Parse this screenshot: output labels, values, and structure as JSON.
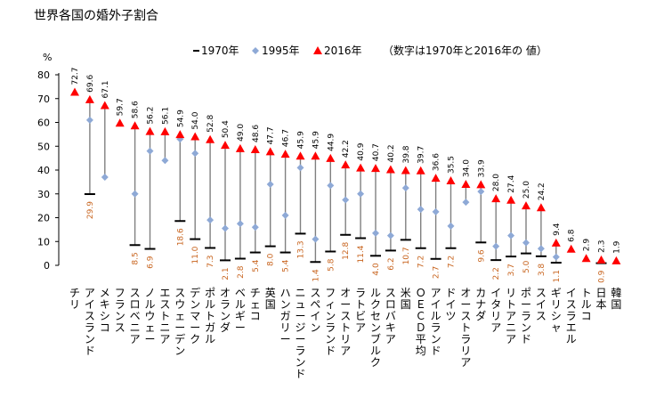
{
  "chart_data": {
    "type": "scatter",
    "title": "世界各国の婚外子割合",
    "ylabel": "%",
    "ylim": [
      0,
      80
    ],
    "yticks": [
      0,
      10,
      20,
      30,
      40,
      50,
      60,
      70,
      80
    ],
    "legend": {
      "placement": "top",
      "note": "（数字は1970年と2016年の 値）"
    },
    "series": [
      {
        "name": "1970年",
        "marker": "dash",
        "color": "#000000",
        "values": [
          null,
          29.9,
          null,
          null,
          8.5,
          6.9,
          null,
          18.6,
          11.0,
          7.3,
          2.1,
          2.8,
          5.4,
          8.0,
          5.4,
          13.3,
          1.4,
          5.8,
          12.8,
          11.4,
          4.0,
          6.2,
          10.7,
          7.2,
          2.7,
          7.2,
          null,
          9.6,
          2.2,
          3.7,
          5.0,
          3.8,
          1.1,
          null,
          null,
          0.9,
          null
        ]
      },
      {
        "name": "1995年",
        "marker": "diamond",
        "color": "#8ea9d6",
        "values": [
          null,
          61,
          37,
          null,
          30,
          48,
          44,
          53,
          47,
          19,
          15.5,
          17.5,
          16,
          34,
          21,
          41,
          11,
          33.5,
          27.5,
          30,
          13.5,
          12.5,
          32.5,
          23.5,
          22.5,
          16.5,
          26.5,
          31,
          8,
          12.5,
          9.5,
          7,
          3.5,
          null,
          null,
          null,
          null
        ]
      },
      {
        "name": "2016年",
        "marker": "triangle",
        "color": "#ff0000",
        "values": [
          72.7,
          69.6,
          67.1,
          59.7,
          58.6,
          56.2,
          56.1,
          54.9,
          54.0,
          52.8,
          50.4,
          49.0,
          48.6,
          47.7,
          46.7,
          45.9,
          45.9,
          44.9,
          42.2,
          40.9,
          40.7,
          40.2,
          39.8,
          39.7,
          36.6,
          35.5,
          34.0,
          33.9,
          28.0,
          27.4,
          25.0,
          24.2,
          9.4,
          6.8,
          2.9,
          2.3,
          1.9
        ]
      }
    ],
    "categories": [
      "チリ",
      "アイスランド",
      "メキシコ",
      "フランス",
      "スロベニア",
      "ノルウェー",
      "エストニア",
      "スウェーデン",
      "デンマーク",
      "ポルトガル",
      "オランダ",
      "ベルギー",
      "チェコ",
      "英国",
      "ハンガリー",
      "ニュージーランド",
      "スペイン",
      "フィンランド",
      "オーストリア",
      "ラトビア",
      "ルクセンブルク",
      "スロバキア",
      "米国",
      "ＯＥＣＤ平均",
      "アイルランド",
      "ドイツ",
      "オーストラリア",
      "カナダ",
      "イタリア",
      "リトアニア",
      "ポーランド",
      "スイス",
      "ギリシャ",
      "イスラエル",
      "トルコ",
      "日本",
      "韓国"
    ],
    "labels_2016": [
      "72.7",
      "69.6",
      "67.1",
      "59.7",
      "58.6",
      "56.2",
      "56.1",
      "54.9",
      "54.0",
      "52.8",
      "50.4",
      "49.0",
      "48.6",
      "47.7",
      "46.7",
      "45.9",
      "45.9",
      "44.9",
      "42.2",
      "40.9",
      "40.7",
      "40.2",
      "39.8",
      "39.7",
      "36.6",
      "35.5",
      "34.0",
      "33.9",
      "28.0",
      "27.4",
      "25.0",
      "24.2",
      "9.4",
      "6.8",
      "2.9",
      "2.3",
      "1.9"
    ],
    "labels_1970": [
      "",
      "29.9",
      "",
      "",
      "8.5",
      "6.9",
      "",
      "18.6",
      "11.0",
      "7.3",
      "2.1",
      "2.8",
      "5.4",
      "8.0",
      "5.4",
      "13.3",
      "1.4",
      "5.8",
      "12.8",
      "11.4",
      "4.0",
      "6.2",
      "10.7",
      "7.2",
      "2.7",
      "7.2",
      "",
      "9.6",
      "2.2",
      "3.7",
      "5.0",
      "3.8",
      "1.1",
      "",
      "",
      "0.9",
      ""
    ],
    "colors": {
      "range_line": "#808080",
      "label_1970": "#c8641e",
      "label_2016": "#000000"
    }
  }
}
